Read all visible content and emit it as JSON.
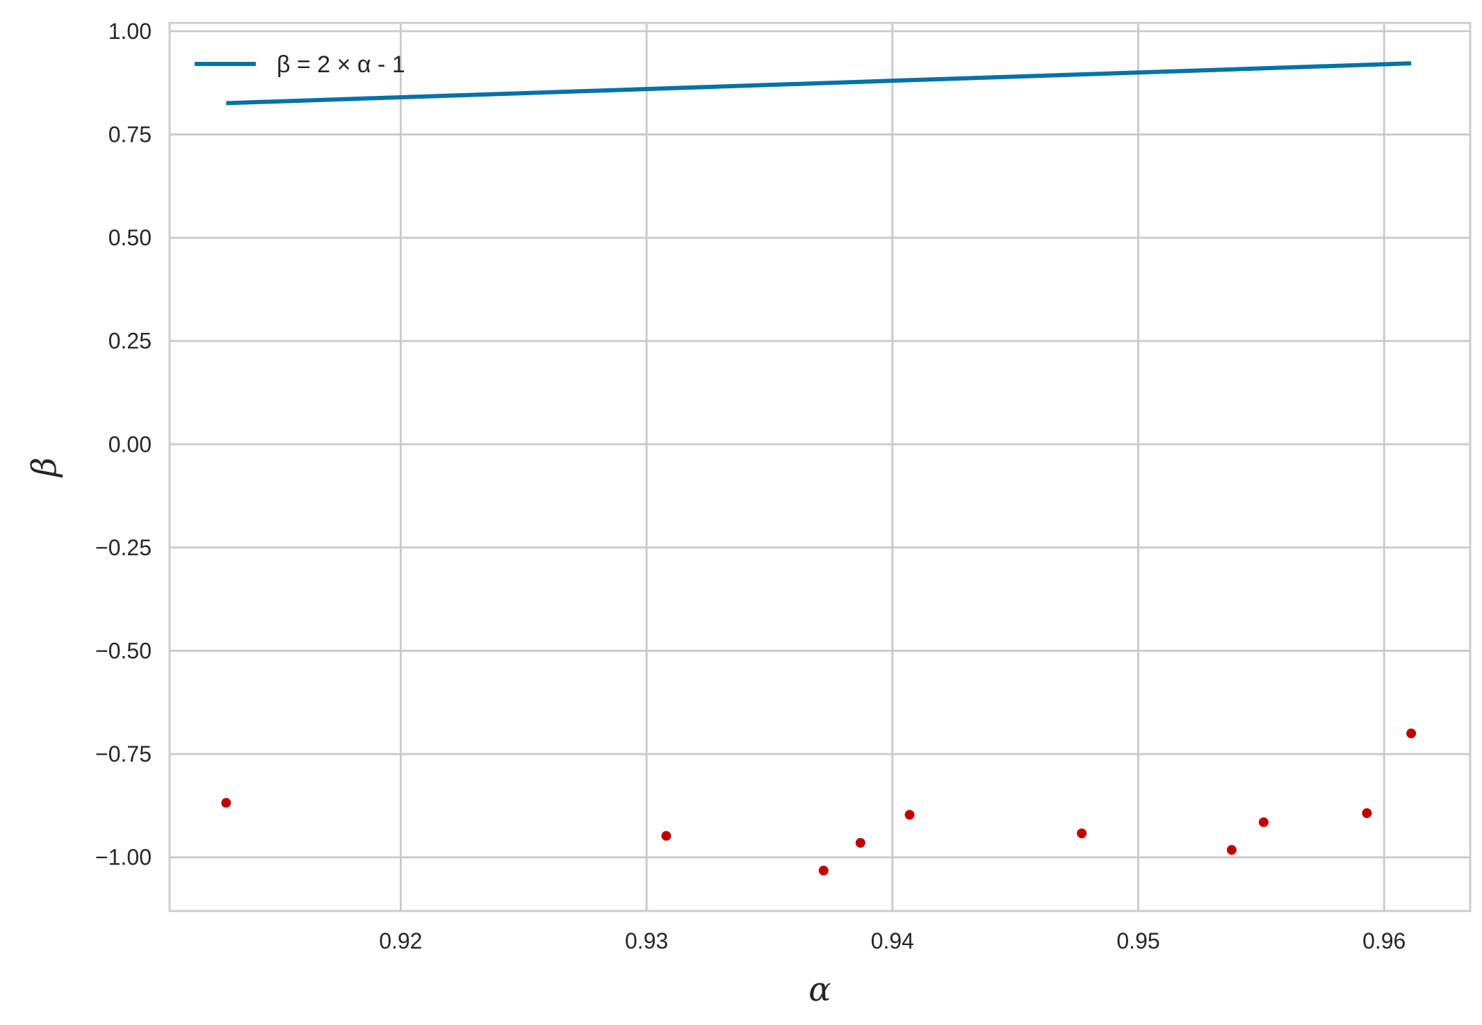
{
  "chart_data": {
    "type": "scatter",
    "xlabel": "α",
    "ylabel": "β",
    "xlim": [
      0.9106,
      0.9635
    ],
    "ylim": [
      -1.13,
      1.02
    ],
    "x_ticks": [
      0.92,
      0.93,
      0.94,
      0.95,
      0.96
    ],
    "x_tick_labels": [
      "0.92",
      "0.93",
      "0.94",
      "0.95",
      "0.96"
    ],
    "y_ticks": [
      1.0,
      0.75,
      0.5,
      0.25,
      0.0,
      -0.25,
      -0.5,
      -0.75,
      -1.0
    ],
    "y_tick_labels": [
      "1.00",
      "0.75",
      "0.50",
      "0.25",
      "0.00",
      "−0.25",
      "−0.50",
      "−0.75",
      "−1.00"
    ],
    "grid": true,
    "legend_position": "top-left",
    "series": [
      {
        "name": "β = 2 × α - 1",
        "kind": "line",
        "color": "#0072a8",
        "x": [
          0.9129,
          0.9611
        ],
        "y": [
          0.8258,
          0.9222
        ]
      },
      {
        "kind": "scatter",
        "color": "#c00000",
        "x": [
          0.9129,
          0.9308,
          0.9372,
          0.9387,
          0.9407,
          0.9477,
          0.9538,
          0.9551,
          0.9593,
          0.9611
        ],
        "y": [
          -0.868,
          -0.948,
          -1.032,
          -0.965,
          -0.897,
          -0.942,
          -0.982,
          -0.915,
          -0.893,
          -0.7
        ]
      }
    ]
  }
}
